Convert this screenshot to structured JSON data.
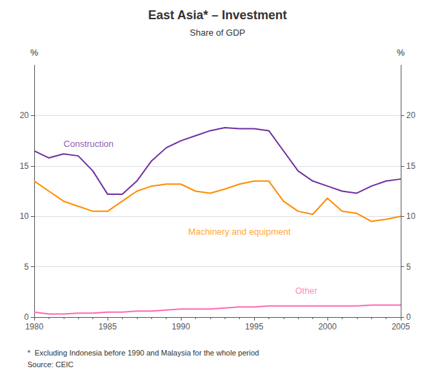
{
  "chart_data": {
    "type": "line",
    "title": "East Asia* – Investment",
    "subtitle": "Share of GDP",
    "footnotes": [
      "*  Excluding Indonesia before 1990 and Malaysia for the whole period",
      "Source: CEIC"
    ],
    "ylabel": "%",
    "y2label": "%",
    "x": [
      1980,
      1981,
      1982,
      1983,
      1984,
      1985,
      1986,
      1987,
      1988,
      1989,
      1990,
      1991,
      1992,
      1993,
      1994,
      1995,
      1996,
      1997,
      1998,
      1999,
      2000,
      2001,
      2002,
      2003,
      2004,
      2005
    ],
    "xlim": [
      1980,
      2005
    ],
    "xticks": [
      1980,
      1985,
      1990,
      1995,
      2000,
      2005
    ],
    "ylim": [
      0,
      25
    ],
    "yticks": [
      0,
      5,
      10,
      15,
      20
    ],
    "y2lim": [
      0,
      25
    ],
    "y2ticks": [
      0,
      5,
      10,
      15,
      20
    ],
    "grid": true,
    "series": [
      {
        "name": "Construction",
        "color": "#7030A0",
        "values": [
          16.5,
          15.8,
          16.2,
          16.0,
          14.5,
          12.2,
          12.2,
          13.5,
          15.5,
          16.8,
          17.5,
          18.0,
          18.5,
          18.8,
          18.7,
          18.7,
          18.5,
          16.5,
          14.5,
          13.5,
          13.0,
          12.5,
          12.3,
          13.0,
          13.5,
          13.7
        ]
      },
      {
        "name": "Machinery and equipment",
        "color": "#FF8C00",
        "values": [
          13.5,
          12.5,
          11.5,
          11.0,
          10.5,
          10.5,
          11.5,
          12.5,
          13.0,
          13.2,
          13.2,
          12.5,
          12.3,
          12.7,
          13.2,
          13.5,
          13.5,
          11.5,
          10.5,
          10.2,
          11.8,
          10.5,
          10.3,
          9.5,
          9.7,
          10.0
        ]
      },
      {
        "name": "Other",
        "color": "#FF69B4",
        "values": [
          0.5,
          0.3,
          0.3,
          0.4,
          0.4,
          0.5,
          0.5,
          0.6,
          0.6,
          0.7,
          0.8,
          0.8,
          0.8,
          0.9,
          1.0,
          1.0,
          1.1,
          1.1,
          1.1,
          1.1,
          1.1,
          1.1,
          1.1,
          1.2,
          1.2,
          1.2
        ]
      }
    ],
    "annotations": [
      {
        "text": "Construction",
        "x": 1982.0,
        "y": 17.2,
        "color": "#7030A0"
      },
      {
        "text": "Machinery and equipment",
        "x": 1990.5,
        "y": 8.5,
        "color": "#FF8C00"
      },
      {
        "text": "Other",
        "x": 1997.8,
        "y": 2.6,
        "color": "#FF69B4"
      }
    ]
  }
}
